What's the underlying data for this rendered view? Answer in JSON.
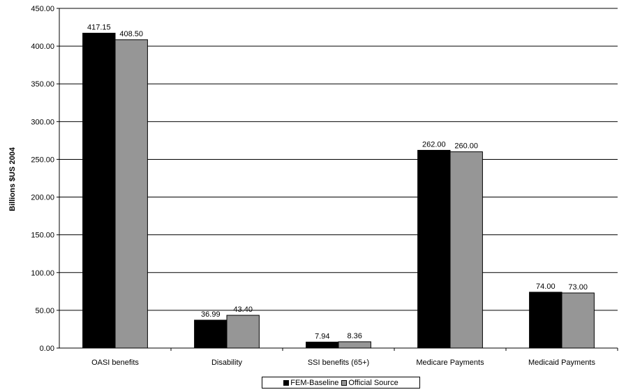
{
  "chart_data": {
    "type": "bar",
    "categories": [
      "OASI benefits",
      "Disability",
      "SSI benefits (65+)",
      "Medicare Payments",
      "Medicaid Payments"
    ],
    "series": [
      {
        "name": "FEM-Baseline",
        "values": [
          417.15,
          36.99,
          7.94,
          262.0,
          74.0
        ],
        "color": "#000000"
      },
      {
        "name": "Official Source",
        "values": [
          408.5,
          43.4,
          8.36,
          260.0,
          73.0
        ],
        "color": "#969696"
      }
    ],
    "value_labels": [
      [
        "417.15",
        "36.99",
        "7.94",
        "262.00",
        "74.00"
      ],
      [
        "408.50",
        "43.40",
        "8.36",
        "260.00",
        "73.00"
      ]
    ],
    "ylabel": "Billions $US 2004",
    "xlabel": "",
    "ylim": [
      0,
      450
    ],
    "yticks": [
      "0.00",
      "50.00",
      "100.00",
      "150.00",
      "200.00",
      "250.00",
      "300.00",
      "350.00",
      "400.00",
      "450.00"
    ],
    "grid": true,
    "legend_position": "bottom"
  }
}
